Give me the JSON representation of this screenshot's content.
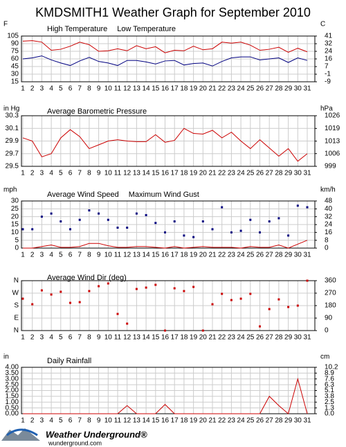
{
  "title": "KMDSMITH1 Weather Graph for September 2010",
  "footer": {
    "brand": "Weather Underground®",
    "site": "wunderground.com"
  },
  "chart_data": [
    {
      "type": "line",
      "unit_left": "F",
      "unit_right": "C",
      "categories": [
        "1",
        "2",
        "3",
        "4",
        "5",
        "6",
        "7",
        "8",
        "9",
        "10",
        "11",
        "12",
        "13",
        "14",
        "15",
        "16",
        "17",
        "18",
        "19",
        "20",
        "21",
        "22",
        "23",
        "24",
        "25",
        "26",
        "27",
        "28",
        "29",
        "30",
        "31"
      ],
      "ylim": [
        15,
        105
      ],
      "yticks": [
        15,
        30,
        45,
        60,
        75,
        90,
        105
      ],
      "y2lim": [
        -9.4,
        40.6
      ],
      "y2ticks": [
        {
          "value": -9.4,
          "label": "-9"
        },
        {
          "value": -1.1,
          "label": "-1"
        },
        {
          "value": 7.2,
          "label": "7"
        },
        {
          "value": 15.6,
          "label": "16"
        },
        {
          "value": 23.9,
          "label": "24"
        },
        {
          "value": 32.2,
          "label": "32"
        },
        {
          "value": 40.6,
          "label": "41"
        }
      ],
      "grid": true,
      "series": [
        {
          "name": "High Temperature",
          "color": "#cc0000",
          "values": [
            95,
            96,
            93,
            77,
            79,
            85,
            93,
            88,
            75,
            76,
            80,
            76,
            86,
            80,
            84,
            72,
            77,
            76,
            85,
            78,
            80,
            93,
            91,
            93,
            87,
            77,
            79,
            83,
            73,
            81,
            74
          ]
        },
        {
          "name": "Low Temperature",
          "color": "#000080",
          "values": [
            60,
            62,
            66,
            58,
            52,
            47,
            56,
            63,
            55,
            52,
            47,
            57,
            57,
            54,
            50,
            56,
            57,
            48,
            51,
            52,
            46,
            55,
            62,
            64,
            64,
            58,
            60,
            62,
            53,
            62,
            57
          ]
        }
      ]
    },
    {
      "type": "line",
      "unit_left": "in Hg",
      "unit_right": "hPa",
      "title": "Average Barometric Pressure",
      "color": "#cc0000",
      "categories": [
        "1",
        "2",
        "3",
        "4",
        "5",
        "6",
        "7",
        "8",
        "9",
        "10",
        "11",
        "12",
        "13",
        "14",
        "15",
        "16",
        "17",
        "18",
        "19",
        "20",
        "21",
        "22",
        "23",
        "24",
        "25",
        "26",
        "27",
        "28",
        "29",
        "30",
        "31"
      ],
      "ylim": [
        29.5,
        30.3
      ],
      "yticks": [
        29.5,
        29.7,
        29.9,
        30.1,
        30.3
      ],
      "y2lim": [
        999.0,
        1026.1
      ],
      "y2ticks": [
        {
          "value": 999.0,
          "label": "999"
        },
        {
          "value": 1005.8,
          "label": "1006"
        },
        {
          "value": 1012.5,
          "label": "1013"
        },
        {
          "value": 1019.3,
          "label": "1019"
        },
        {
          "value": 1026.1,
          "label": "1026"
        }
      ],
      "grid": true,
      "values": [
        29.95,
        29.9,
        29.65,
        29.7,
        29.95,
        30.08,
        29.97,
        29.78,
        29.84,
        29.9,
        29.92,
        29.9,
        29.89,
        29.89,
        30.0,
        29.88,
        29.91,
        30.1,
        30.02,
        30.01,
        30.07,
        29.95,
        30.04,
        29.9,
        29.78,
        29.92,
        29.79,
        29.66,
        29.78,
        29.58,
        29.7
      ]
    },
    {
      "type": "line",
      "unit_left": "mph",
      "unit_right": "km/h",
      "categories": [
        "1",
        "2",
        "3",
        "4",
        "5",
        "6",
        "7",
        "8",
        "9",
        "10",
        "11",
        "12",
        "13",
        "14",
        "15",
        "16",
        "17",
        "18",
        "19",
        "20",
        "21",
        "22",
        "23",
        "24",
        "25",
        "26",
        "27",
        "28",
        "29",
        "30",
        "31"
      ],
      "ylim": [
        0,
        30
      ],
      "yticks": [
        0,
        5,
        10,
        15,
        20,
        25,
        30
      ],
      "y2lim": [
        0,
        48.3
      ],
      "y2ticks": [
        0,
        {
          "value": 8.05,
          "label": "8"
        },
        {
          "value": 16.1,
          "label": "16"
        },
        {
          "value": 24.1,
          "label": "24"
        },
        {
          "value": 32.2,
          "label": "32"
        },
        {
          "value": 40.2,
          "label": "40"
        },
        {
          "value": 48.3,
          "label": "48"
        }
      ],
      "grid": true,
      "series": [
        {
          "name": "Average Wind Speed",
          "color": "#cc0000",
          "mode": "lines",
          "values": [
            0,
            0,
            1,
            2,
            0.5,
            0.5,
            1,
            3,
            3,
            1.5,
            0.5,
            0.5,
            1,
            1,
            0.5,
            0,
            1,
            0,
            0.5,
            1,
            0.5,
            0.5,
            0.5,
            0,
            1,
            0.5,
            0.5,
            2,
            0,
            2.5,
            5
          ]
        },
        {
          "name": "Maximum Wind Gust",
          "color": "#000080",
          "mode": "markers",
          "values": [
            12,
            12,
            20,
            22,
            17,
            12,
            18,
            24,
            22,
            18,
            13,
            13,
            22,
            21,
            16,
            10,
            17,
            8,
            7,
            17,
            12,
            26,
            10,
            11,
            18,
            10,
            17,
            19,
            8,
            27,
            26
          ]
        }
      ]
    },
    {
      "type": "scatter",
      "title": "Average Wind Dir (deg)",
      "color": "#cc0000",
      "categories": [
        "1",
        "2",
        "3",
        "4",
        "5",
        "6",
        "7",
        "8",
        "9",
        "10",
        "11",
        "12",
        "13",
        "14",
        "15",
        "16",
        "17",
        "18",
        "19",
        "20",
        "21",
        "22",
        "23",
        "24",
        "25",
        "26",
        "27",
        "28",
        "29",
        "30",
        "31"
      ],
      "ylim": [
        0,
        360
      ],
      "yticks": [
        {
          "value": 0,
          "label": "N"
        },
        {
          "value": 90,
          "label": "E"
        },
        {
          "value": 180,
          "label": "S"
        },
        {
          "value": 270,
          "label": "W"
        },
        {
          "value": 360,
          "label": "N"
        }
      ],
      "ytick_color": "#cc0000",
      "y2lim": [
        0,
        360
      ],
      "y2ticks": [
        0,
        90,
        180,
        270,
        360
      ],
      "grid": true,
      "values": [
        230,
        190,
        290,
        260,
        280,
        200,
        205,
        285,
        320,
        340,
        120,
        50,
        300,
        310,
        330,
        0,
        305,
        285,
        315,
        0,
        190,
        265,
        220,
        230,
        265,
        30,
        155,
        225,
        170,
        180,
        360
      ]
    },
    {
      "type": "line",
      "unit_left": "in",
      "unit_right": "cm",
      "title": "Daily Rainfall",
      "color": "#cc0000",
      "categories": [
        "1",
        "2",
        "3",
        "4",
        "5",
        "6",
        "7",
        "8",
        "9",
        "10",
        "11",
        "12",
        "13",
        "14",
        "15",
        "16",
        "17",
        "18",
        "19",
        "20",
        "21",
        "22",
        "23",
        "24",
        "25",
        "26",
        "27",
        "28",
        "29",
        "30",
        "31"
      ],
      "ylim": [
        0,
        4
      ],
      "yticks": [
        {
          "value": 0,
          "label": "0.00"
        },
        {
          "value": 0.5,
          "label": "0.50"
        },
        {
          "value": 1,
          "label": "1.00"
        },
        {
          "value": 1.5,
          "label": "1.50"
        },
        {
          "value": 2,
          "label": "2.00"
        },
        {
          "value": 2.5,
          "label": "2.50"
        },
        {
          "value": 3,
          "label": "3.00"
        },
        {
          "value": 3.5,
          "label": "3.50"
        },
        {
          "value": 4,
          "label": "4.00"
        }
      ],
      "y2lim": [
        0,
        10.16
      ],
      "y2ticks": [
        {
          "value": 0,
          "label": "0.0"
        },
        {
          "value": 1.27,
          "label": "1.3"
        },
        {
          "value": 2.54,
          "label": "2.5"
        },
        {
          "value": 3.81,
          "label": "3.8"
        },
        {
          "value": 5.08,
          "label": "5.1"
        },
        {
          "value": 6.35,
          "label": "6.3"
        },
        {
          "value": 7.62,
          "label": "7.6"
        },
        {
          "value": 8.89,
          "label": "8.9"
        },
        {
          "value": 10.16,
          "label": "10.2"
        }
      ],
      "grid": true,
      "values": [
        0,
        0,
        0,
        0,
        0,
        0,
        0,
        0,
        0,
        0,
        0,
        0.7,
        0,
        0,
        0,
        0.8,
        0,
        0,
        0,
        0,
        0,
        0,
        0,
        0,
        0,
        0,
        1.5,
        0.7,
        0,
        3.0,
        0
      ]
    }
  ]
}
